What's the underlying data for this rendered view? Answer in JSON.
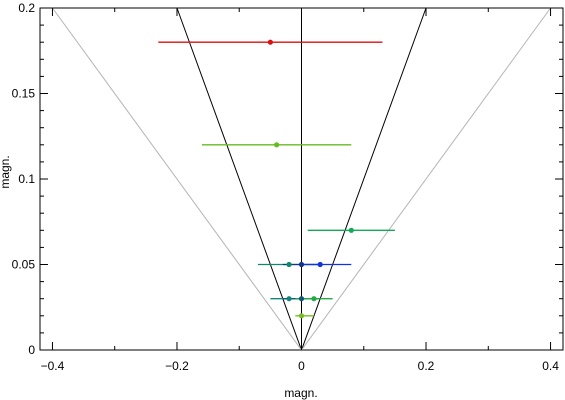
{
  "chart_data": {
    "type": "scatter",
    "xlabel": "magn.",
    "ylabel": "magn.",
    "xlim": [
      -0.42,
      0.42
    ],
    "ylim": [
      0,
      0.2
    ],
    "xticks": [
      -0.4,
      -0.2,
      0,
      0.2,
      0.4
    ],
    "yticks": [
      0,
      0.05,
      0.1,
      0.15,
      0.2
    ],
    "xtick_labels": [
      "−0.4",
      "−0.2",
      "0",
      "0.2",
      "0.4"
    ],
    "ytick_labels": [
      "0",
      "0.05",
      "0.1",
      "0.15",
      "0.2"
    ],
    "grid": false,
    "reference_lines": [
      {
        "name": "inner-cone",
        "color": "#000000",
        "points": [
          [
            -0.2,
            0.2
          ],
          [
            0,
            0
          ],
          [
            0.2,
            0.2
          ]
        ]
      },
      {
        "name": "outer-cone",
        "color": "#b4b4b4",
        "points": [
          [
            -0.4,
            0.2
          ],
          [
            0,
            0
          ],
          [
            0.4,
            0.2
          ]
        ]
      },
      {
        "name": "center-line",
        "color": "#000000",
        "points": [
          [
            0,
            0
          ],
          [
            0,
            0.2
          ]
        ]
      }
    ],
    "points": [
      {
        "x": -0.05,
        "y": 0.18,
        "xmin": -0.23,
        "xmax": 0.13,
        "color": "#dd1010"
      },
      {
        "x": -0.04,
        "y": 0.12,
        "xmin": -0.16,
        "xmax": 0.08,
        "color": "#66bb22"
      },
      {
        "x": 0.08,
        "y": 0.07,
        "xmin": 0.01,
        "xmax": 0.15,
        "color": "#11aa55"
      },
      {
        "x": -0.02,
        "y": 0.05,
        "xmin": -0.07,
        "xmax": 0.03,
        "color": "#118866"
      },
      {
        "x": 0.0,
        "y": 0.05,
        "xmin": -0.03,
        "xmax": 0.03,
        "color": "#113388"
      },
      {
        "x": 0.03,
        "y": 0.05,
        "xmin": 0.0,
        "xmax": 0.08,
        "color": "#1133dd"
      },
      {
        "x": -0.02,
        "y": 0.03,
        "xmin": -0.05,
        "xmax": 0.01,
        "color": "#118877"
      },
      {
        "x": 0.0,
        "y": 0.03,
        "xmin": -0.03,
        "xmax": 0.03,
        "color": "#115577"
      },
      {
        "x": 0.02,
        "y": 0.03,
        "xmin": -0.01,
        "xmax": 0.05,
        "color": "#22aa44"
      },
      {
        "x": 0.0,
        "y": 0.02,
        "xmin": -0.01,
        "xmax": 0.02,
        "color": "#77bb22"
      }
    ]
  }
}
